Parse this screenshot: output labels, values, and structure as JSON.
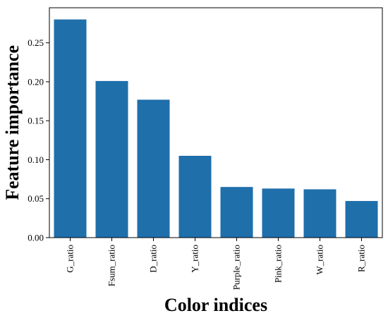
{
  "chart_data": {
    "type": "bar",
    "title": "",
    "xlabel": "Color indices",
    "ylabel": "Feature importance",
    "categories": [
      "G_ratio",
      "Fsum_ratio",
      "D_ratio",
      "Y_ratio",
      "Purple_ratio",
      "Pink_ratio",
      "W_ratio",
      "R_ratio"
    ],
    "values": [
      0.28,
      0.201,
      0.177,
      0.105,
      0.065,
      0.063,
      0.062,
      0.047
    ],
    "ylim": [
      0,
      0.295
    ],
    "yticks": [
      0.0,
      0.05,
      0.1,
      0.15,
      0.2,
      0.25
    ],
    "ytick_labels": [
      "0.00",
      "0.05",
      "0.10",
      "0.15",
      "0.20",
      "0.25"
    ],
    "grid": false,
    "bar_color": "#1f6fab"
  }
}
